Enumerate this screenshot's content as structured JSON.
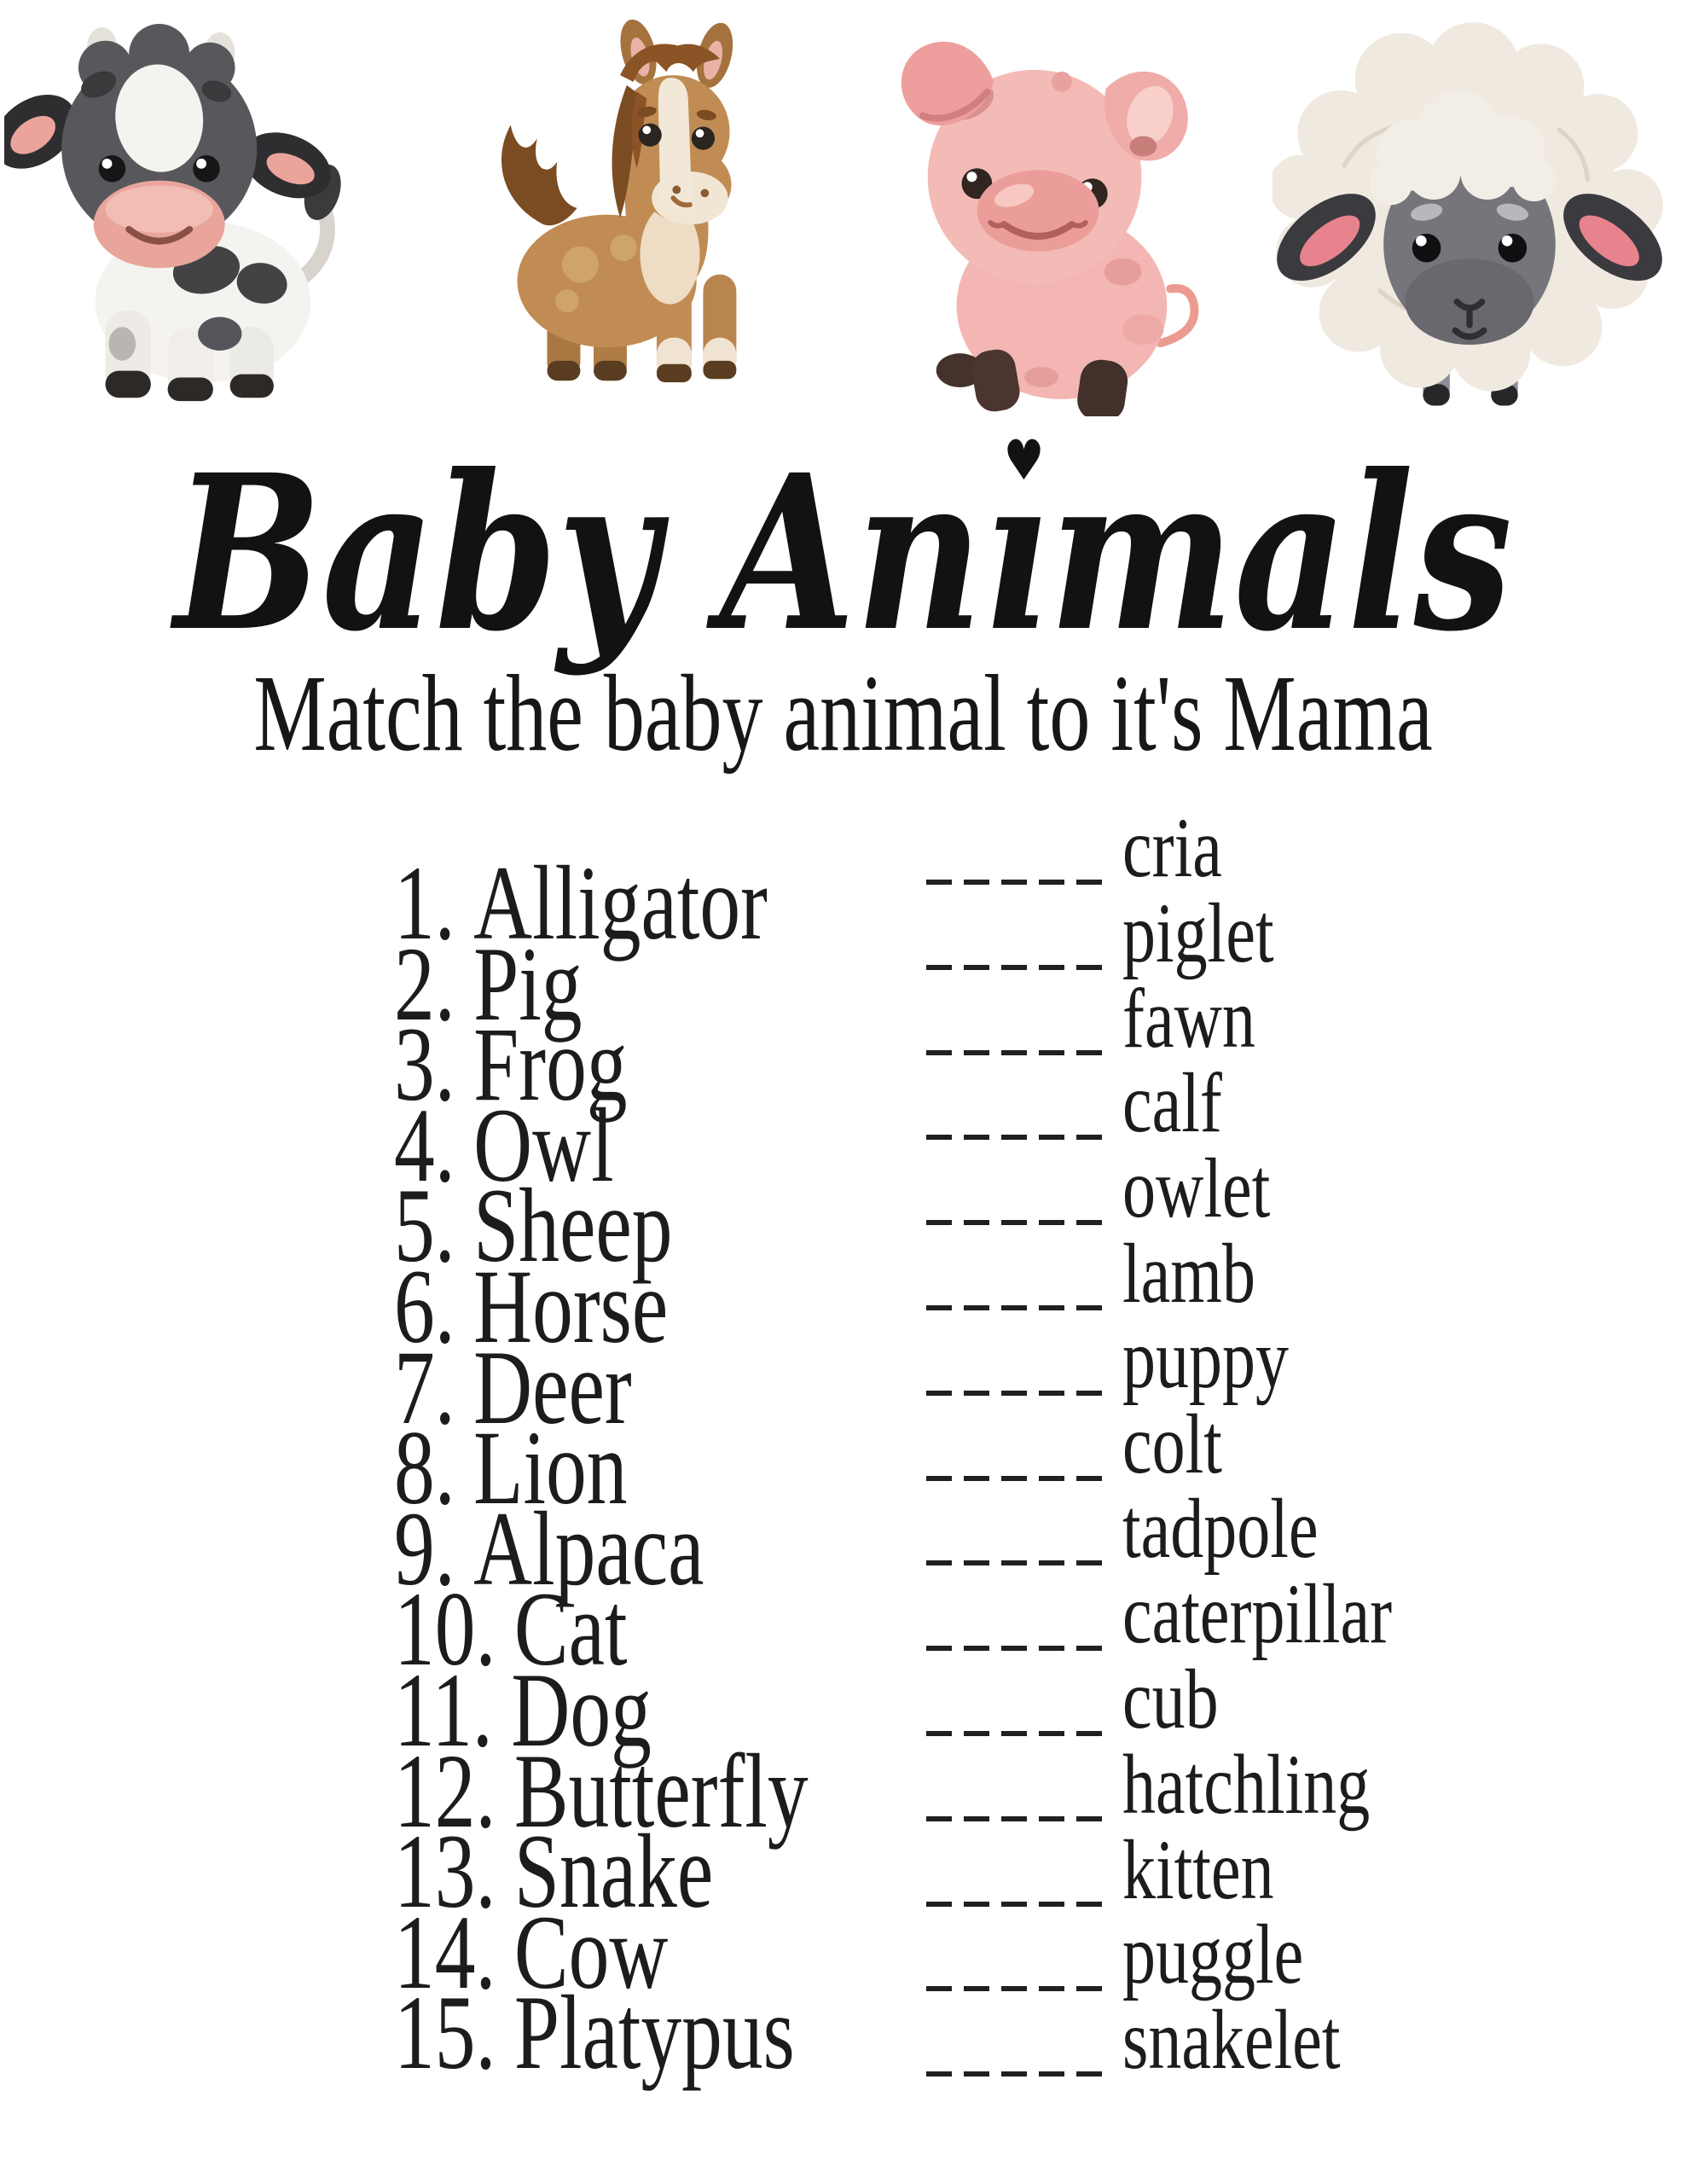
{
  "page": {
    "background": "#ffffff",
    "text_color": "#1c1c1c"
  },
  "header": {
    "title": "Baby Animals",
    "title_pre": "Baby An",
    "title_i": "ı",
    "title_heart": "♥",
    "title_post": "mals",
    "subtitle": "Match the baby animal to it's Mama"
  },
  "illustrations": [
    {
      "name": "cow-calf-illustration",
      "main_colors": [
        "#58585c",
        "#f5f3f0",
        "#e9a59c"
      ]
    },
    {
      "name": "horse-foal-illustration",
      "main_colors": [
        "#c08c54",
        "#7b4c22",
        "#f2e8d8"
      ]
    },
    {
      "name": "piglet-illustration",
      "main_colors": [
        "#f4bbb6",
        "#eb9e99",
        "#4a362f"
      ]
    },
    {
      "name": "sheep-lamb-illustration",
      "main_colors": [
        "#efe9e0",
        "#75757b",
        "#e7838d"
      ]
    }
  ],
  "match_game": {
    "blank_dash_count": 5,
    "mothers": [
      {
        "num": "1.",
        "name": "Alligator"
      },
      {
        "num": "2.",
        "name": "Pig"
      },
      {
        "num": "3.",
        "name": "Frog"
      },
      {
        "num": "4.",
        "name": "Owl"
      },
      {
        "num": "5.",
        "name": "Sheep"
      },
      {
        "num": "6.",
        "name": "Horse"
      },
      {
        "num": "7.",
        "name": "Deer"
      },
      {
        "num": "8.",
        "name": "Lion"
      },
      {
        "num": "9.",
        "name": "Alpaca"
      },
      {
        "num": "10.",
        "name": "Cat"
      },
      {
        "num": "11.",
        "name": "Dog"
      },
      {
        "num": "12.",
        "name": "Butterfly"
      },
      {
        "num": "13.",
        "name": "Snake"
      },
      {
        "num": "14.",
        "name": "Cow"
      },
      {
        "num": "15.",
        "name": "Platypus"
      }
    ],
    "babies": [
      "cria",
      "piglet",
      "fawn",
      "calf",
      "owlet",
      "lamb",
      "puppy",
      "colt",
      "tadpole",
      "caterpillar",
      "cub",
      "hatchling",
      "kitten",
      "puggle",
      "snakelet"
    ]
  }
}
